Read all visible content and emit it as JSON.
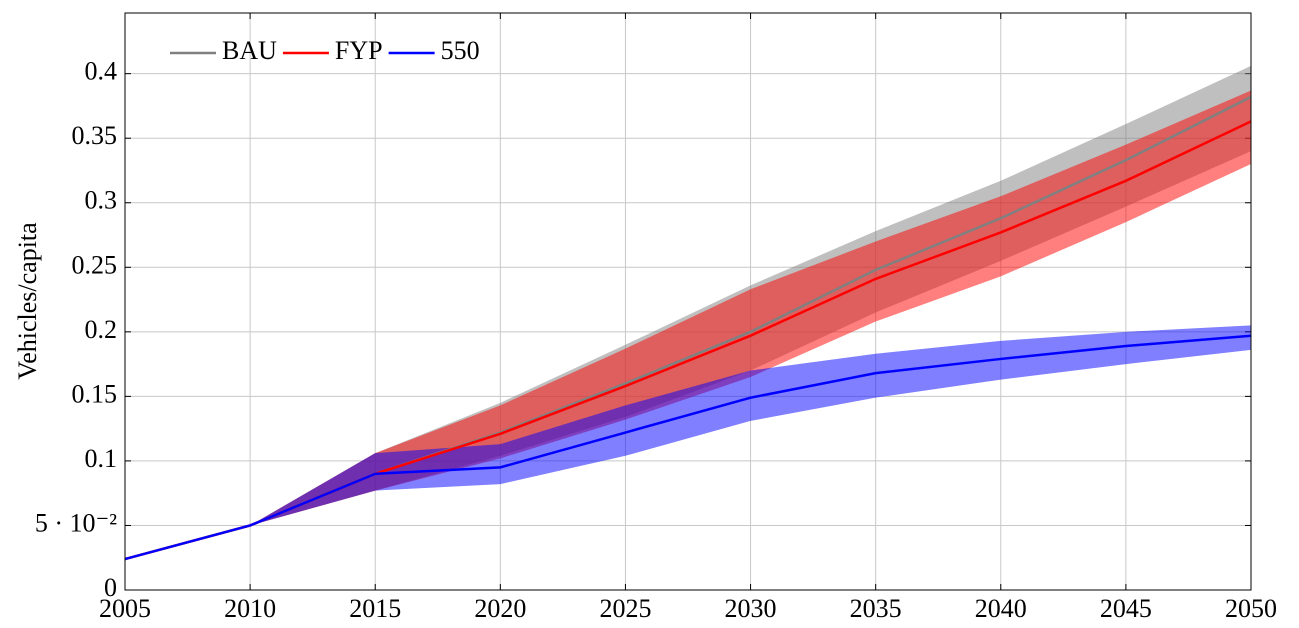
{
  "chart_data": {
    "type": "line",
    "ylabel": "Vehicles/capita",
    "x": [
      2005,
      2010,
      2015,
      2020,
      2025,
      2030,
      2035,
      2040,
      2045,
      2050
    ],
    "xlim": [
      2005,
      2050
    ],
    "xticks": [
      2005,
      2010,
      2015,
      2020,
      2025,
      2030,
      2035,
      2040,
      2045,
      2050
    ],
    "ylim": [
      0,
      0.447
    ],
    "yticks": [
      0,
      {
        "value": 0.05,
        "label": "5 · 10⁻²"
      },
      0.1,
      0.15,
      0.2,
      0.25,
      0.3,
      0.35,
      0.4
    ],
    "grid": true,
    "legend": "upper left",
    "series": [
      {
        "name": "BAU",
        "color": "#808080",
        "values": [
          0.024,
          0.05,
          0.09,
          0.122,
          0.16,
          0.2,
          0.248,
          0.288,
          0.333,
          0.382
        ],
        "lower": [
          0.024,
          0.05,
          0.077,
          0.104,
          0.134,
          0.17,
          0.215,
          0.255,
          0.297,
          0.34
        ],
        "upper": [
          0.024,
          0.05,
          0.106,
          0.145,
          0.19,
          0.236,
          0.278,
          0.317,
          0.361,
          0.406
        ]
      },
      {
        "name": "FYP",
        "color": "#ff0000",
        "values": [
          0.024,
          0.05,
          0.09,
          0.121,
          0.158,
          0.197,
          0.241,
          0.277,
          0.317,
          0.363
        ],
        "lower": [
          0.024,
          0.05,
          0.077,
          0.102,
          0.132,
          0.165,
          0.208,
          0.243,
          0.285,
          0.33
        ],
        "upper": [
          0.024,
          0.05,
          0.106,
          0.143,
          0.187,
          0.233,
          0.27,
          0.305,
          0.345,
          0.387
        ]
      },
      {
        "name": "550",
        "color": "#0000ff",
        "values": [
          0.024,
          0.05,
          0.09,
          0.095,
          0.122,
          0.149,
          0.168,
          0.179,
          0.189,
          0.197
        ],
        "lower": [
          0.024,
          0.05,
          0.077,
          0.082,
          0.104,
          0.131,
          0.149,
          0.163,
          0.175,
          0.186
        ],
        "upper": [
          0.024,
          0.05,
          0.106,
          0.113,
          0.143,
          0.17,
          0.183,
          0.193,
          0.2,
          0.205
        ]
      }
    ]
  }
}
